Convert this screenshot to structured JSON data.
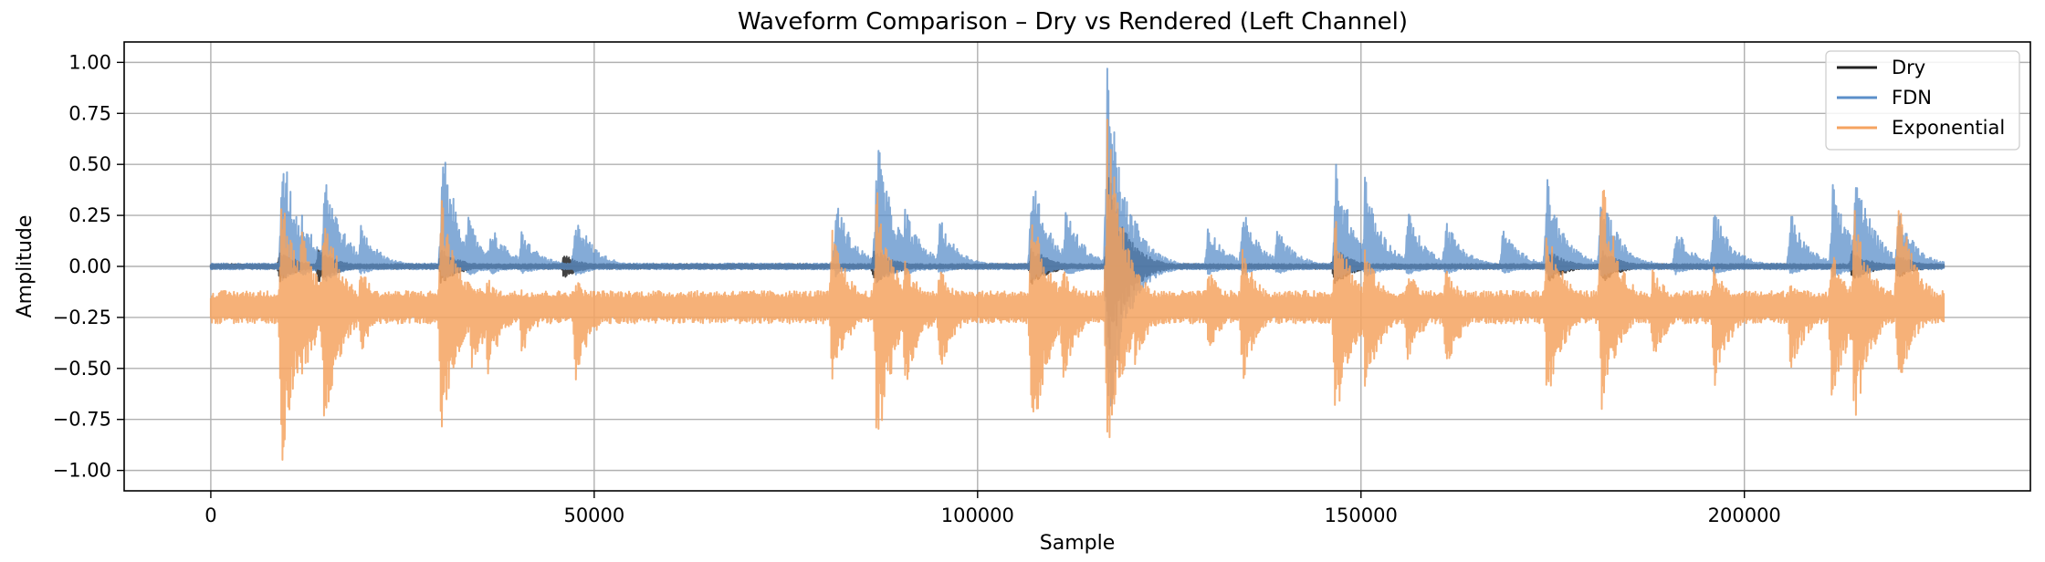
{
  "chart_data": {
    "type": "line",
    "title": "Waveform Comparison – Dry vs Rendered (Left Channel)",
    "xlabel": "Sample",
    "ylabel": "Amplitude",
    "xlim": [
      -11300,
      237300
    ],
    "ylim": [
      -1.1,
      1.1
    ],
    "xticks": [
      0,
      50000,
      100000,
      150000,
      200000
    ],
    "xtick_labels": [
      "0",
      "50000",
      "100000",
      "150000",
      "200000"
    ],
    "yticks": [
      1.0,
      0.75,
      0.5,
      0.25,
      0.0,
      -0.25,
      -0.5,
      -0.75,
      -1.0
    ],
    "ytick_labels": [
      "1.00",
      "0.75",
      "0.50",
      "0.25",
      "0.00",
      "−0.25",
      "−0.50",
      "−0.75",
      "−1.00"
    ],
    "grid": true,
    "legend_position": "top-right",
    "n_samples": 226000,
    "series": [
      {
        "name": "Dry",
        "color": "#222222",
        "baseline": 0.0,
        "noise_floor": 0.012,
        "bursts": [
          [
            9000,
            0.08,
            -0.08
          ],
          [
            14000,
            0.09,
            -0.09
          ],
          [
            30000,
            0.09,
            -0.09
          ],
          [
            46000,
            0.06,
            -0.06
          ],
          [
            86500,
            0.1,
            -0.1
          ],
          [
            107000,
            0.1,
            -0.1
          ],
          [
            117000,
            0.5,
            -0.5
          ],
          [
            146500,
            0.1,
            -0.1
          ],
          [
            174500,
            0.08,
            -0.08
          ],
          [
            181500,
            0.08,
            -0.08
          ],
          [
            214000,
            0.08,
            -0.08
          ],
          [
            220000,
            0.06,
            -0.06
          ]
        ]
      },
      {
        "name": "FDN",
        "color": "#5b8fc9",
        "baseline": 0.0,
        "noise_floor": 0.015,
        "bursts": [
          [
            9300,
            0.62,
            -0.07
          ],
          [
            11800,
            0.28,
            -0.05
          ],
          [
            14800,
            0.52,
            -0.08
          ],
          [
            19500,
            0.22,
            -0.04
          ],
          [
            30200,
            0.62,
            -0.07
          ],
          [
            33500,
            0.25,
            -0.05
          ],
          [
            36500,
            0.22,
            -0.04
          ],
          [
            40500,
            0.18,
            -0.04
          ],
          [
            47500,
            0.29,
            -0.05
          ],
          [
            81500,
            0.35,
            -0.05
          ],
          [
            86800,
            0.69,
            -0.1
          ],
          [
            90500,
            0.3,
            -0.05
          ],
          [
            95000,
            0.25,
            -0.04
          ],
          [
            107000,
            0.5,
            -0.08
          ],
          [
            111500,
            0.3,
            -0.05
          ],
          [
            116900,
            1.0,
            -0.9
          ],
          [
            120500,
            0.25,
            -0.05
          ],
          [
            130000,
            0.22,
            -0.04
          ],
          [
            134500,
            0.3,
            -0.05
          ],
          [
            139000,
            0.2,
            -0.04
          ],
          [
            146700,
            0.55,
            -0.08
          ],
          [
            150500,
            0.45,
            -0.06
          ],
          [
            156000,
            0.3,
            -0.05
          ],
          [
            161000,
            0.25,
            -0.04
          ],
          [
            168500,
            0.2,
            -0.04
          ],
          [
            174200,
            0.45,
            -0.06
          ],
          [
            181300,
            0.41,
            -0.06
          ],
          [
            191000,
            0.2,
            -0.04
          ],
          [
            196000,
            0.3,
            -0.05
          ],
          [
            206000,
            0.28,
            -0.04
          ],
          [
            211500,
            0.42,
            -0.06
          ],
          [
            214500,
            0.54,
            -0.07
          ],
          [
            220000,
            0.3,
            -0.05
          ]
        ]
      },
      {
        "name": "Exponential",
        "color": "#f5a360",
        "baseline": -0.2,
        "noise_floor": 0.08,
        "bursts": [
          [
            9200,
            0.4,
            -1.0
          ],
          [
            11800,
            0.2,
            -0.6
          ],
          [
            14700,
            0.35,
            -0.83
          ],
          [
            19500,
            0.0,
            -0.45
          ],
          [
            30000,
            0.38,
            -0.86
          ],
          [
            34000,
            -0.05,
            -0.55
          ],
          [
            36000,
            -0.05,
            -0.55
          ],
          [
            40500,
            -0.1,
            -0.45
          ],
          [
            47500,
            -0.05,
            -0.6
          ],
          [
            81000,
            0.2,
            -0.6
          ],
          [
            86800,
            0.4,
            -0.97
          ],
          [
            90500,
            0.05,
            -0.62
          ],
          [
            95000,
            0.0,
            -0.55
          ],
          [
            107000,
            0.3,
            -0.93
          ],
          [
            111000,
            0.0,
            -0.6
          ],
          [
            116900,
            0.85,
            -0.98
          ],
          [
            120500,
            0.0,
            -0.5
          ],
          [
            130000,
            0.0,
            -0.45
          ],
          [
            134500,
            0.1,
            -0.6
          ],
          [
            146600,
            0.3,
            -0.8
          ],
          [
            150500,
            0.1,
            -0.65
          ],
          [
            156000,
            0.0,
            -0.5
          ],
          [
            161000,
            0.0,
            -0.55
          ],
          [
            174200,
            0.25,
            -0.71
          ],
          [
            181300,
            0.5,
            -0.75
          ],
          [
            188000,
            0.0,
            -0.5
          ],
          [
            196000,
            0.0,
            -0.62
          ],
          [
            206000,
            -0.05,
            -0.55
          ],
          [
            211300,
            0.1,
            -0.71
          ],
          [
            214300,
            0.3,
            -0.82
          ],
          [
            220000,
            0.43,
            -0.62
          ]
        ]
      }
    ]
  }
}
